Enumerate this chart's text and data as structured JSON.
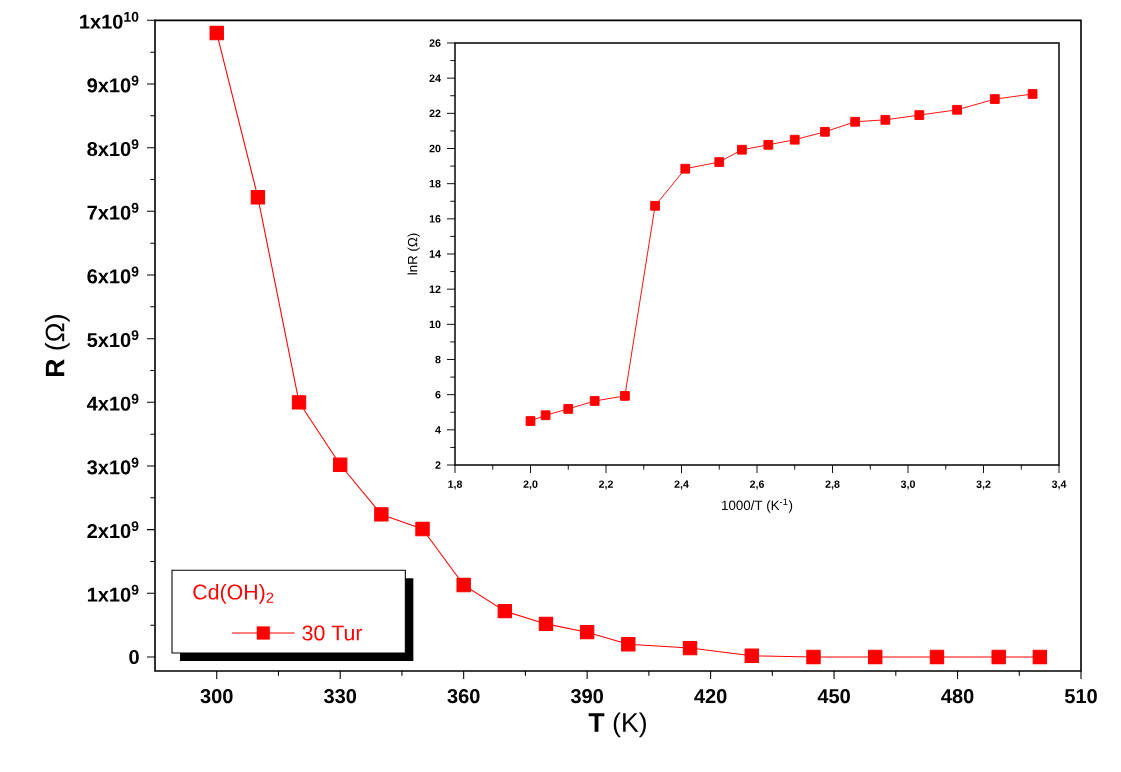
{
  "chart_data": [
    {
      "type": "line",
      "xlabel": "**T** (K)",
      "ylabel": "**R** (Ω)",
      "legend_title": "Cd(OH)$_{2}$",
      "legend": "bottom left",
      "marker": "square",
      "line_style": "solid",
      "grid": false,
      "x": [
        300,
        310,
        320,
        330,
        340,
        350,
        360,
        370,
        380,
        390,
        400,
        415,
        430,
        445,
        460,
        475,
        490,
        500
      ],
      "series": [
        {
          "name": "30 Tur",
          "color": "#ff0000",
          "values": [
            9800000000.0,
            7220000000.0,
            4000000000.0,
            3020000000.0,
            2240000000.0,
            2010000000.0,
            1130000000.0,
            720000000.0,
            520000000.0,
            390000000.0,
            200000000.0,
            140000000.0,
            20000000.0,
            0,
            0,
            0,
            0,
            0
          ]
        }
      ],
      "xlim": [
        285,
        510
      ],
      "xticks": [
        300,
        330,
        360,
        390,
        420,
        450,
        480,
        510
      ],
      "ylim": [
        -220000000.0,
        10000000000.0
      ],
      "yticks": [
        {
          "value": 0,
          "label": "0"
        },
        {
          "value": 1000000000.0,
          "label": "1x10$^{9}$"
        },
        {
          "value": 2000000000.0,
          "label": "2x10$^{9}$"
        },
        {
          "value": 3000000000.0,
          "label": "3x10$^{9}$"
        },
        {
          "value": 4000000000.0,
          "label": "4x10$^{9}$"
        },
        {
          "value": 5000000000.0,
          "label": "5x10$^{9}$"
        },
        {
          "value": 6000000000.0,
          "label": "6x10$^{9}$"
        },
        {
          "value": 7000000000.0,
          "label": "7x10$^{9}$"
        },
        {
          "value": 8000000000.0,
          "label": "8x10$^{9}$"
        },
        {
          "value": 9000000000.0,
          "label": "9x10$^{9}$"
        },
        {
          "value": 10000000000.0,
          "label": "1x10$^{10}$"
        }
      ]
    },
    {
      "type": "line",
      "xlabel": "1000/T (K$^{-1}$)",
      "ylabel": "lnR (Ω)",
      "marker": "square",
      "line_style": "solid",
      "grid": false,
      "x": [
        2.0,
        2.04,
        2.1,
        2.17,
        2.25,
        2.33,
        2.41,
        2.5,
        2.56,
        2.63,
        2.7,
        2.78,
        2.86,
        2.94,
        3.03,
        3.13,
        3.23,
        3.33
      ],
      "series": [
        {
          "color": "#ff0000",
          "values": [
            4.5,
            4.83,
            5.19,
            5.64,
            5.93,
            16.74,
            18.85,
            19.23,
            19.93,
            20.21,
            20.5,
            20.95,
            21.52,
            21.63,
            21.9,
            22.2,
            22.81,
            23.1
          ]
        }
      ],
      "xlim": [
        1.8,
        3.4
      ],
      "xticks": [
        {
          "value": 1.8,
          "label": "1,8"
        },
        {
          "value": 2.0,
          "label": "2,0"
        },
        {
          "value": 2.2,
          "label": "2,2"
        },
        {
          "value": 2.4,
          "label": "2,4"
        },
        {
          "value": 2.6,
          "label": "2,6"
        },
        {
          "value": 2.8,
          "label": "2,8"
        },
        {
          "value": 3.0,
          "label": "3,0"
        },
        {
          "value": 3.2,
          "label": "3,2"
        },
        {
          "value": 3.4,
          "label": "3,4"
        }
      ],
      "ylim": [
        2,
        26
      ],
      "yticks": [
        2,
        4,
        6,
        8,
        10,
        12,
        14,
        16,
        18,
        20,
        22,
        24,
        26
      ]
    }
  ]
}
